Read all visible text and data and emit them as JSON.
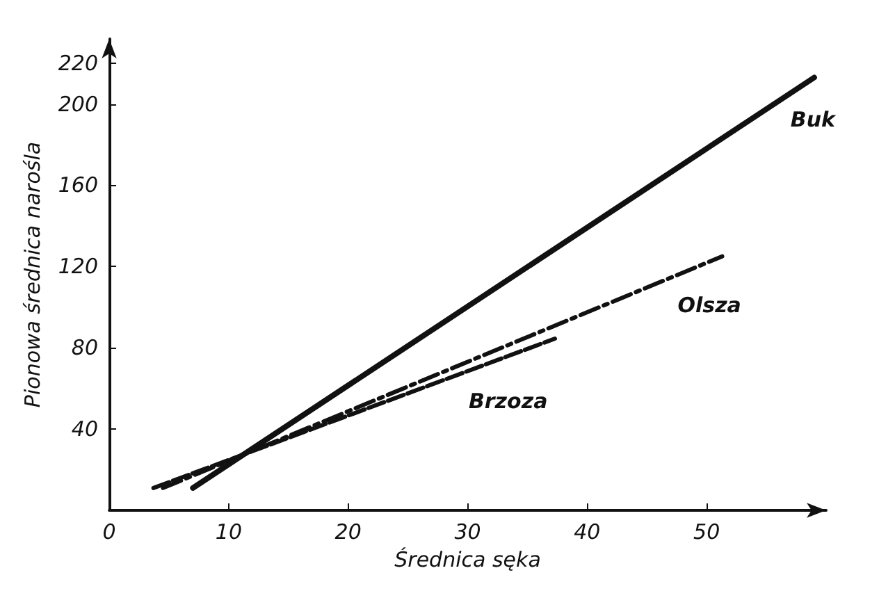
{
  "chart_data": {
    "type": "line",
    "xlabel": "Średnica sęka",
    "ylabel": "Pionowa średnica narośla",
    "xlim": [
      0,
      60
    ],
    "ylim": [
      0,
      232
    ],
    "xticks": [
      0,
      10,
      20,
      30,
      40,
      50
    ],
    "yticks": [
      40,
      80,
      120,
      160,
      200,
      220
    ],
    "grid": false,
    "legend": false,
    "marker": "none",
    "series": [
      {
        "name": "Buk",
        "color": "#111111",
        "line_style": "solid",
        "x": [
          7,
          59
        ],
        "values": [
          11,
          213
        ]
      },
      {
        "name": "Olsza",
        "color": "#111111",
        "line_style": "dashdot",
        "x": [
          4.5,
          51.3
        ],
        "values": [
          11,
          125
        ]
      },
      {
        "name": "Brzoza",
        "color": "#111111",
        "line_style": "dashed",
        "x": [
          3.7,
          37.3
        ],
        "values": [
          11,
          84.5
        ]
      }
    ]
  }
}
